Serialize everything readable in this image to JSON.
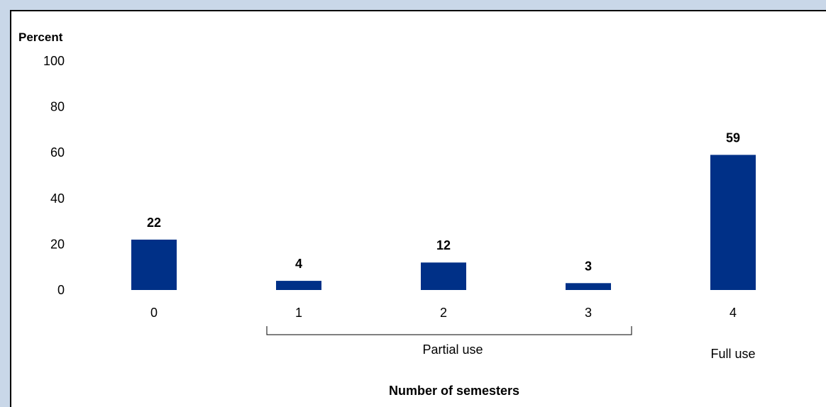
{
  "chart_data": {
    "type": "bar",
    "ylabel": "Percent",
    "xlabel": "Number of semesters",
    "ylim": [
      0,
      100
    ],
    "yticks": [
      "0",
      "20",
      "40",
      "60",
      "80",
      "100"
    ],
    "categories": [
      "0",
      "1",
      "2",
      "3",
      "4"
    ],
    "values": [
      22,
      4,
      12,
      3,
      59
    ],
    "data_labels": [
      "22",
      "4",
      "12",
      "3",
      "59"
    ],
    "bar_color": "#003087",
    "groups": [
      {
        "label": "Partial use",
        "categories": [
          "1",
          "2",
          "3"
        ]
      },
      {
        "label": "Full use",
        "categories": [
          "4"
        ]
      }
    ],
    "grid": false,
    "legend": "none"
  },
  "colors": {
    "background": "#c9d7e8",
    "panel": "#ffffff",
    "bar": "#003087"
  }
}
